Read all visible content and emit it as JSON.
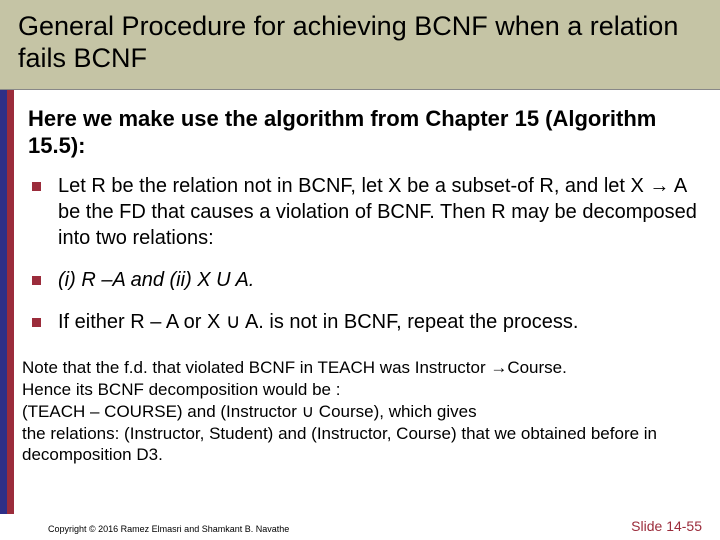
{
  "title": "General Procedure for achieving BCNF when a relation fails BCNF",
  "lead": "Here we make use the algorithm from Chapter 15 (Algorithm 15.5):",
  "bullets": [
    "Let R be the relation not in BCNF, let X be a subset-of R, and let X → A be the FD that causes a violation of BCNF. Then R may be decomposed into two relations:",
    "(i) R –A  and (ii) X U A.",
    "If either  R – A  or X ∪ A. is not in BCNF, repeat the process."
  ],
  "note_lines": [
    "Note that the f.d. that violated BCNF in TEACH was Instructor →Course.",
    "Hence its BCNF decomposition would be :",
    "(TEACH – COURSE) and (Instructor ∪ Course), which gives",
    "the relations: (Instructor, Student) and (Instructor, Course) that we obtained before in decomposition D3."
  ],
  "copyright": "Copyright © 2016 Ramez Elmasri and Shamkant B. Navathe",
  "slide_number": "Slide 14-55",
  "colors": {
    "title_bg": "#c5c4a5",
    "stripe_left": "#2e2f87",
    "stripe_right": "#9b2c3b",
    "bullet": "#9b2c3b",
    "slide_num": "#9b2c3b"
  }
}
